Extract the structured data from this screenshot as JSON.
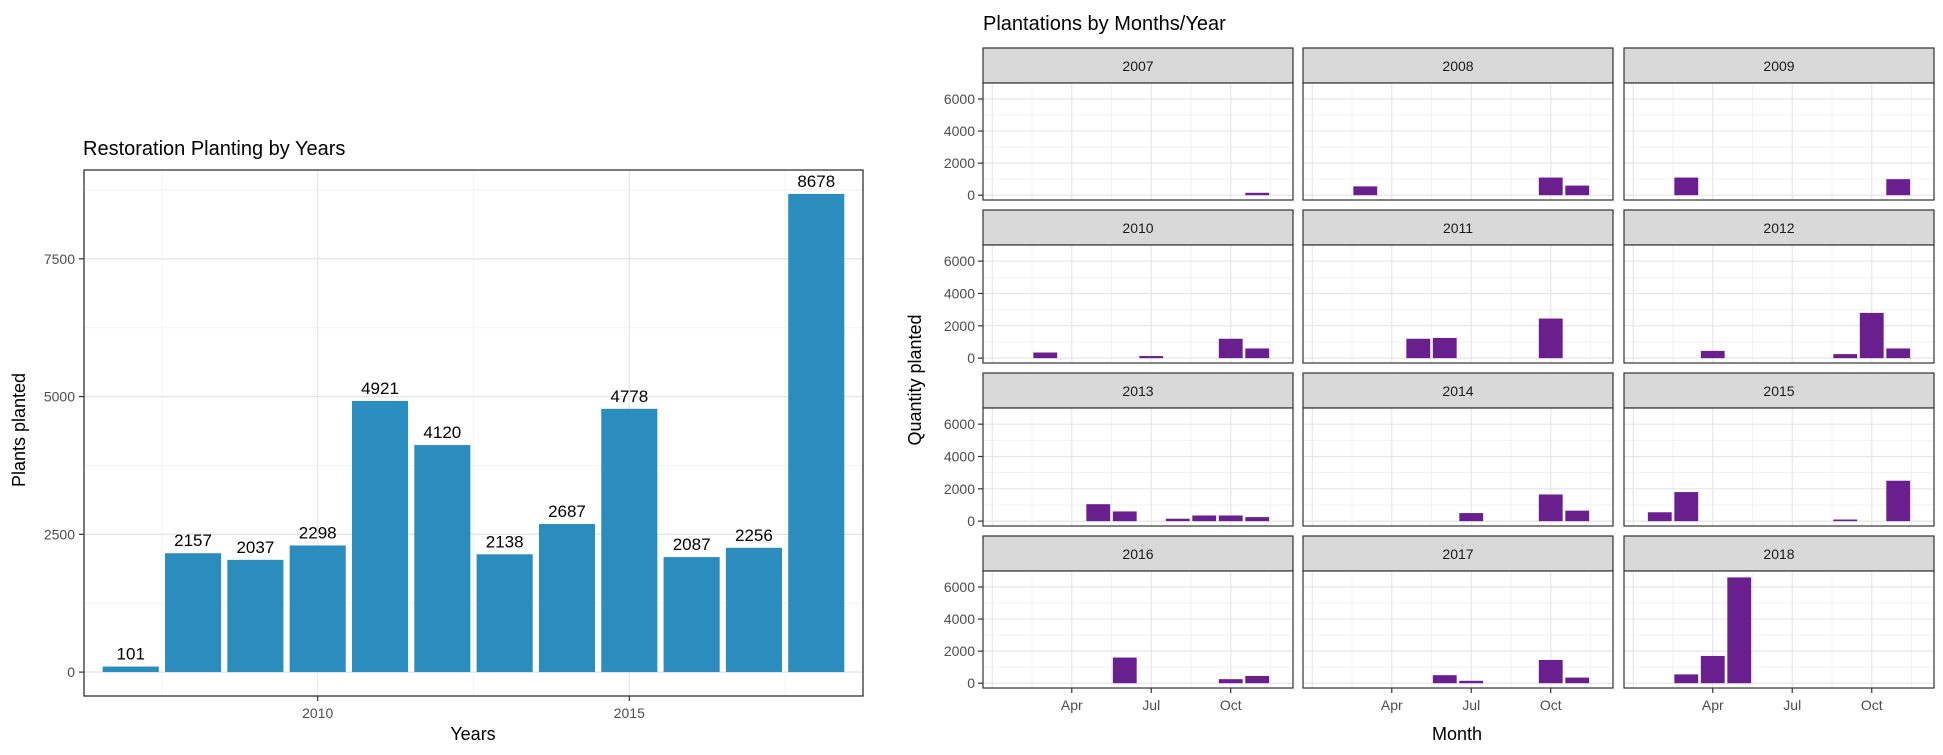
{
  "chart_data": [
    {
      "type": "bar",
      "title": "Restoration Planting by Years",
      "xlabel": "Years",
      "ylabel": "Plants planted",
      "x": [
        2007,
        2008,
        2009,
        2010,
        2011,
        2012,
        2013,
        2014,
        2015,
        2016,
        2017,
        2018
      ],
      "values": [
        101,
        2157,
        2037,
        2298,
        4921,
        4120,
        2138,
        2687,
        4778,
        2087,
        2256,
        8678
      ],
      "data_labels": [
        "101",
        "2157",
        "2037",
        "2298",
        "4921",
        "4120",
        "2138",
        "2687",
        "4778",
        "2087",
        "2256",
        "8678"
      ],
      "x_ticks": [
        "2010",
        "2015"
      ],
      "y_ticks": [
        "0",
        "2500",
        "5000",
        "7500"
      ],
      "xlim": [
        2006.25,
        2018.75
      ],
      "ylim": [
        -434,
        9112
      ],
      "color": "#2b8cbe",
      "grid": true
    },
    {
      "type": "bar",
      "title": "Plantations by Months/Year",
      "xlabel": "Month",
      "ylabel": "Quantity planted",
      "x_ticks": [
        "Apr",
        "Jul",
        "Oct"
      ],
      "y_ticks": [
        "0",
        "2000",
        "4000",
        "6000"
      ],
      "ylim": [
        -300,
        7000
      ],
      "color": "#6a1f8f",
      "strip_fill": "#d9d9d9",
      "grid": true,
      "facets": [
        {
          "label": "2007",
          "values": [
            [
              11,
              150
            ]
          ]
        },
        {
          "label": "2008",
          "values": [
            [
              3,
              550
            ],
            [
              10,
              1100
            ],
            [
              11,
              600
            ]
          ]
        },
        {
          "label": "2009",
          "values": [
            [
              3,
              1100
            ],
            [
              11,
              1000
            ]
          ]
        },
        {
          "label": "2010",
          "values": [
            [
              3,
              350
            ],
            [
              7,
              130
            ],
            [
              10,
              1200
            ],
            [
              11,
              600
            ]
          ]
        },
        {
          "label": "2011",
          "values": [
            [
              5,
              1200
            ],
            [
              6,
              1250
            ],
            [
              10,
              2450
            ]
          ]
        },
        {
          "label": "2012",
          "values": [
            [
              4,
              450
            ],
            [
              9,
              250
            ],
            [
              10,
              2800
            ],
            [
              11,
              600
            ]
          ]
        },
        {
          "label": "2013",
          "values": [
            [
              5,
              1050
            ],
            [
              6,
              600
            ],
            [
              8,
              150
            ],
            [
              9,
              350
            ],
            [
              10,
              350
            ],
            [
              11,
              250
            ]
          ]
        },
        {
          "label": "2014",
          "values": [
            [
              7,
              500
            ],
            [
              10,
              1650
            ],
            [
              11,
              650
            ]
          ]
        },
        {
          "label": "2015",
          "values": [
            [
              2,
              550
            ],
            [
              3,
              1800
            ],
            [
              9,
              100
            ],
            [
              11,
              2500
            ]
          ]
        },
        {
          "label": "2016",
          "values": [
            [
              6,
              1600
            ],
            [
              10,
              250
            ],
            [
              11,
              450
            ]
          ]
        },
        {
          "label": "2017",
          "values": [
            [
              6,
              500
            ],
            [
              7,
              150
            ],
            [
              10,
              1450
            ],
            [
              11,
              350
            ]
          ]
        },
        {
          "label": "2018",
          "values": [
            [
              3,
              550
            ],
            [
              4,
              1700
            ],
            [
              5,
              6600
            ]
          ]
        }
      ]
    }
  ]
}
